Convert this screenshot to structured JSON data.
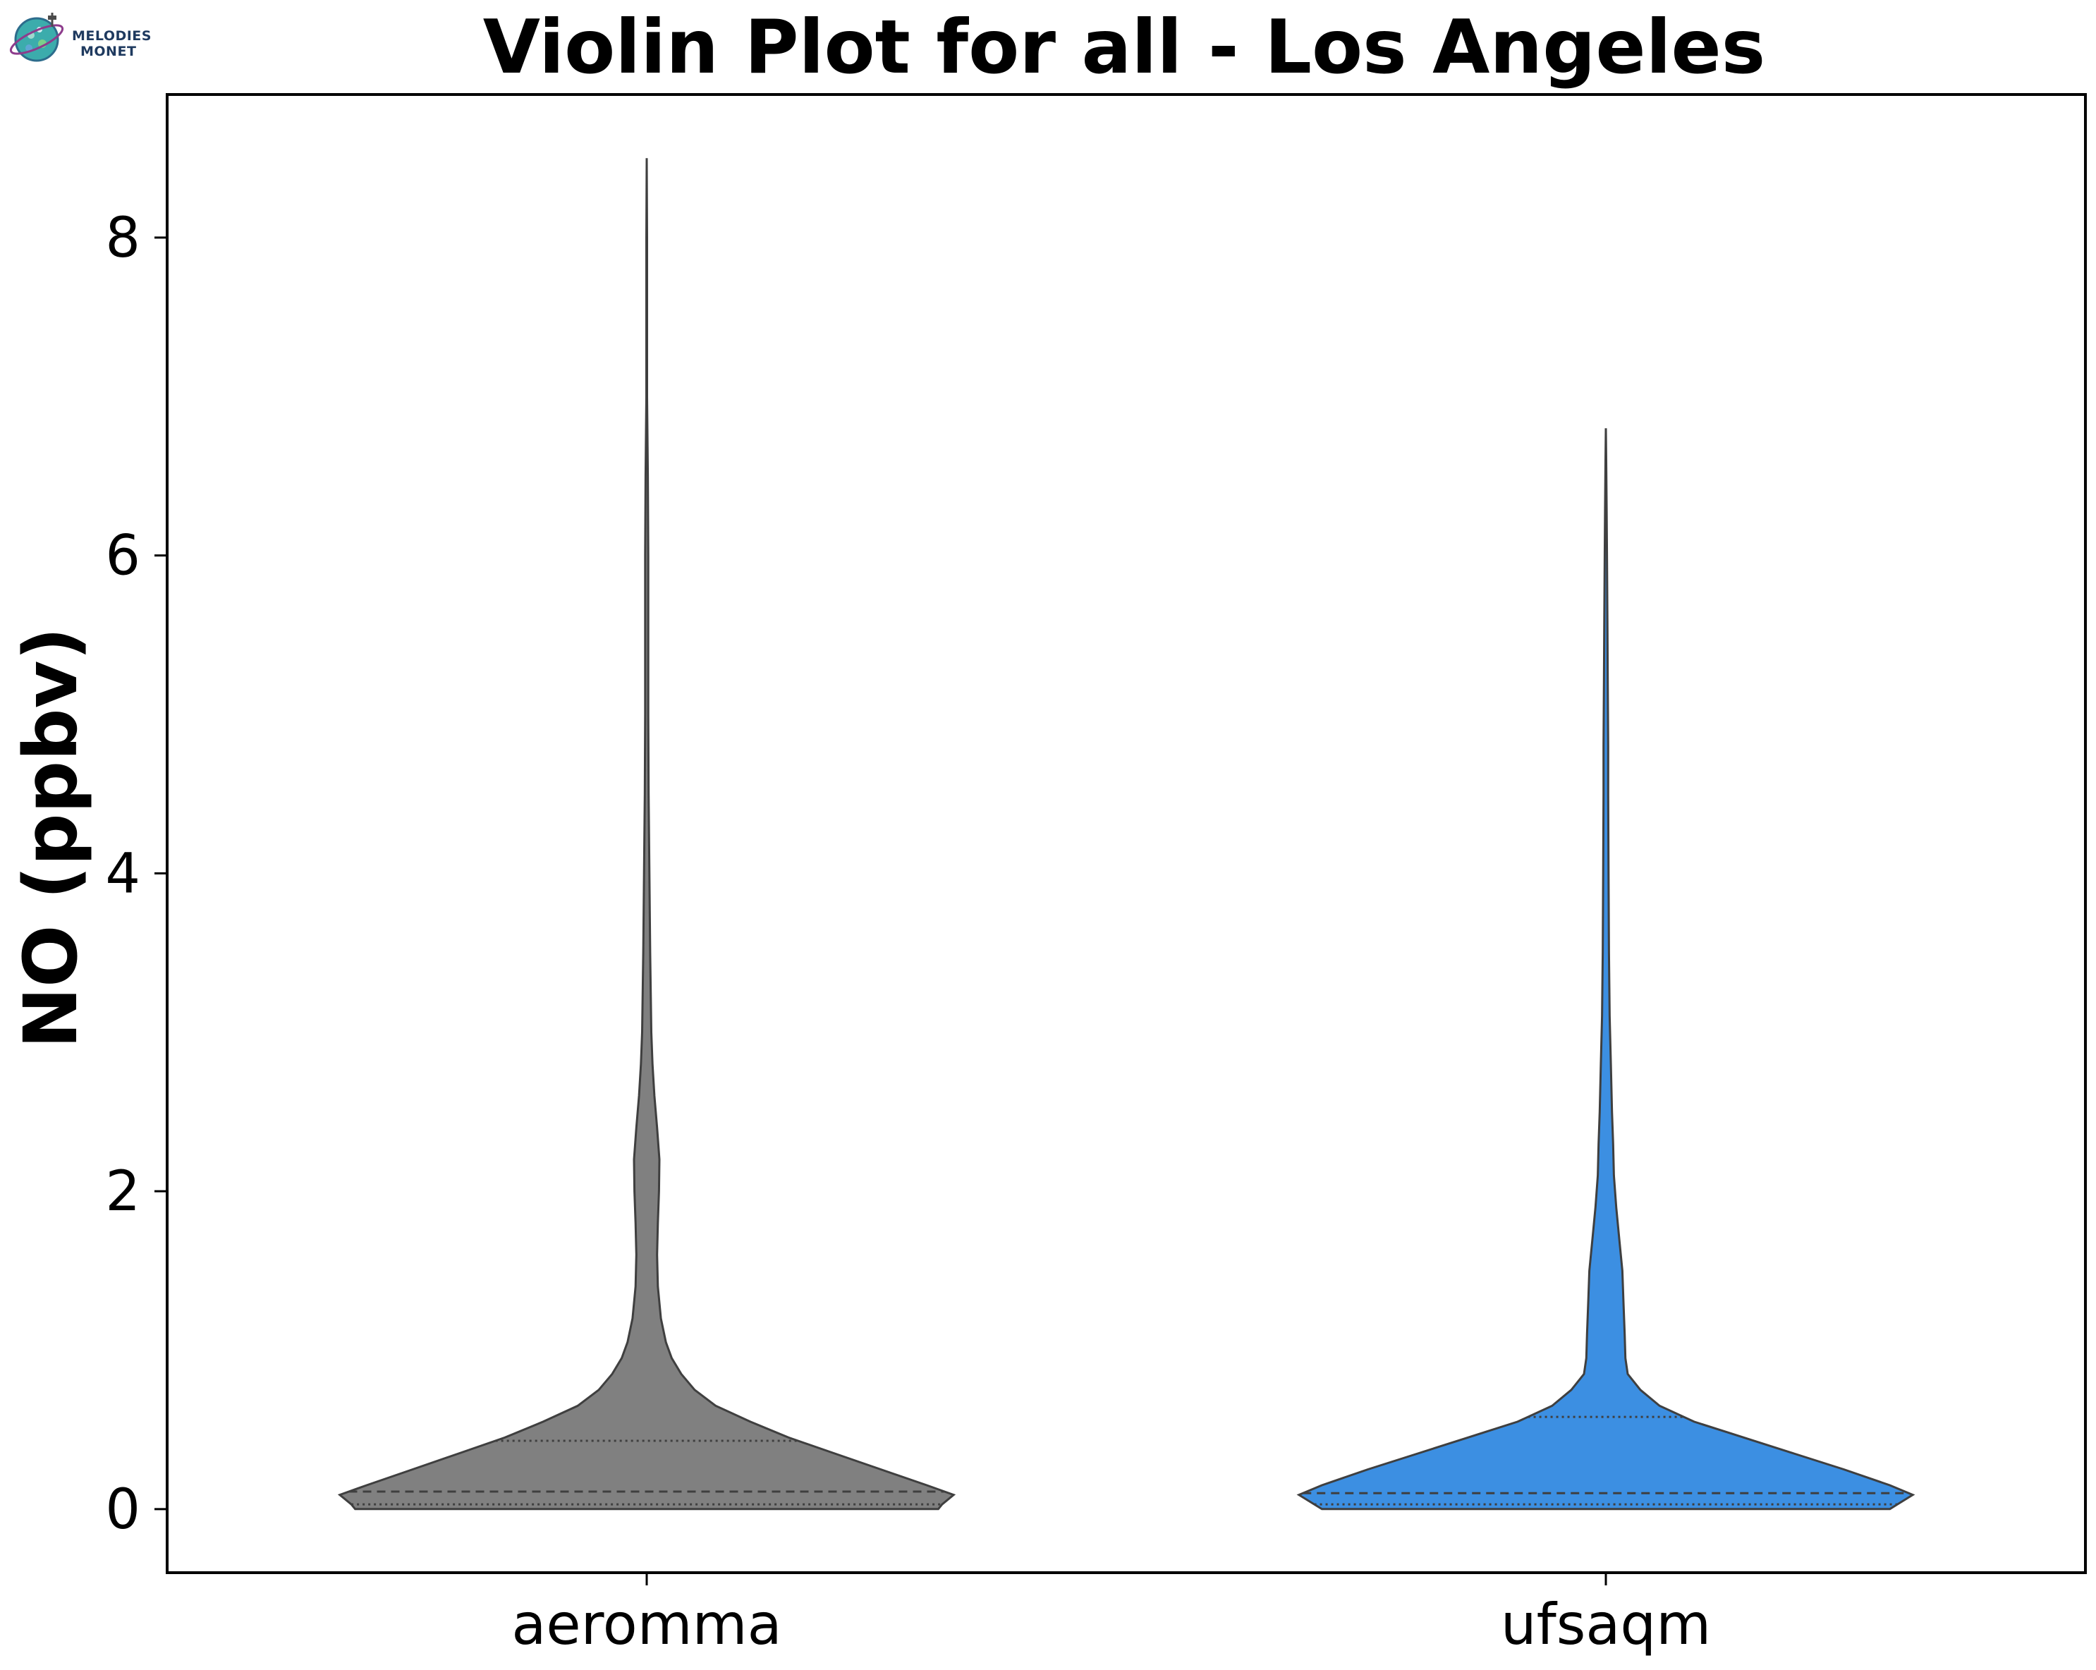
{
  "logo": {
    "line1": "MELODIES",
    "line2": "MONET"
  },
  "chart_data": {
    "type": "violin",
    "title": "Violin Plot for all - Los Angeles",
    "ylabel": "NO (ppbv)",
    "xlabel": "",
    "ylim": [
      -0.4,
      8.9
    ],
    "yticks": [
      0,
      2,
      4,
      6,
      8
    ],
    "categories": [
      "aeromma",
      "ufsaqm"
    ],
    "grid": false,
    "series": [
      {
        "name": "aeromma",
        "color": "#808080",
        "max": 8.5,
        "min": 0.0,
        "quartiles": [
          0.03,
          0.11,
          0.43
        ],
        "density_profile": [
          [
            0.0,
            0.76
          ],
          [
            0.03,
            0.77
          ],
          [
            0.09,
            0.8
          ],
          [
            0.15,
            0.73
          ],
          [
            0.25,
            0.61
          ],
          [
            0.35,
            0.49
          ],
          [
            0.45,
            0.37
          ],
          [
            0.55,
            0.27
          ],
          [
            0.65,
            0.18
          ],
          [
            0.75,
            0.125
          ],
          [
            0.85,
            0.09
          ],
          [
            0.95,
            0.065
          ],
          [
            1.05,
            0.05
          ],
          [
            1.2,
            0.037
          ],
          [
            1.4,
            0.029
          ],
          [
            1.6,
            0.027
          ],
          [
            1.8,
            0.029
          ],
          [
            2.0,
            0.032
          ],
          [
            2.2,
            0.033
          ],
          [
            2.4,
            0.027
          ],
          [
            2.6,
            0.02
          ],
          [
            2.8,
            0.015
          ],
          [
            3.0,
            0.012
          ],
          [
            3.5,
            0.009
          ],
          [
            4.0,
            0.007
          ],
          [
            4.5,
            0.005
          ],
          [
            5.0,
            0.004
          ],
          [
            5.5,
            0.004
          ],
          [
            6.0,
            0.004
          ],
          [
            6.5,
            0.003
          ],
          [
            7.0,
            0.001
          ],
          [
            7.5,
            0.001
          ],
          [
            8.0,
            0.001
          ],
          [
            8.5,
            0.0
          ]
        ]
      },
      {
        "name": "ufsaqm",
        "color": "#3c8fe2",
        "max": 6.8,
        "min": 0.0,
        "quartiles": [
          0.03,
          0.1,
          0.58
        ],
        "density_profile": [
          [
            0.0,
            0.74
          ],
          [
            0.03,
            0.76
          ],
          [
            0.09,
            0.8
          ],
          [
            0.15,
            0.74
          ],
          [
            0.25,
            0.62
          ],
          [
            0.35,
            0.49
          ],
          [
            0.45,
            0.36
          ],
          [
            0.55,
            0.23
          ],
          [
            0.65,
            0.14
          ],
          [
            0.75,
            0.09
          ],
          [
            0.85,
            0.057
          ],
          [
            0.95,
            0.051
          ],
          [
            1.1,
            0.049
          ],
          [
            1.3,
            0.046
          ],
          [
            1.5,
            0.043
          ],
          [
            1.7,
            0.035
          ],
          [
            1.9,
            0.027
          ],
          [
            2.1,
            0.021
          ],
          [
            2.3,
            0.019
          ],
          [
            2.5,
            0.016
          ],
          [
            2.8,
            0.013
          ],
          [
            3.1,
            0.01
          ],
          [
            3.5,
            0.008
          ],
          [
            4.0,
            0.007
          ],
          [
            4.5,
            0.006
          ],
          [
            4.8,
            0.006
          ],
          [
            5.2,
            0.005
          ],
          [
            5.6,
            0.004
          ],
          [
            6.0,
            0.003
          ],
          [
            6.3,
            0.002
          ],
          [
            6.6,
            0.001
          ],
          [
            6.8,
            0.0
          ]
        ]
      }
    ]
  }
}
